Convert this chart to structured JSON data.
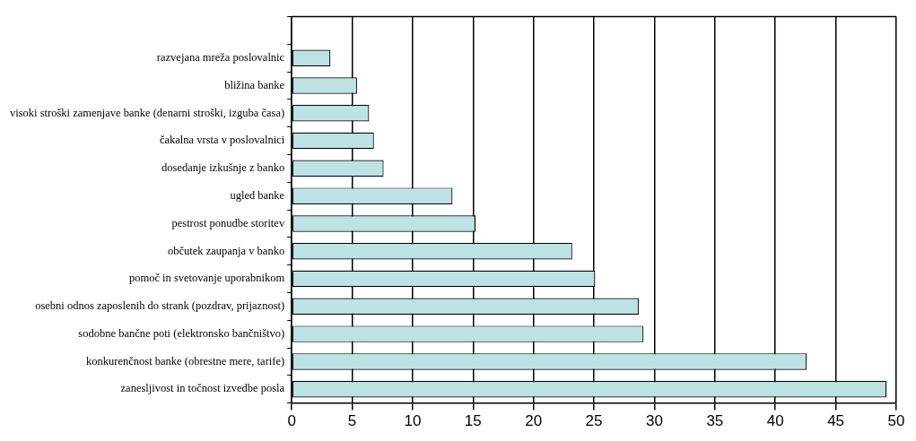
{
  "chart_data": {
    "type": "bar",
    "orientation": "horizontal",
    "categories": [
      null,
      "razvejana mreža poslovalnic",
      "bližina banke",
      "visoki stroški zamenjave banke (denarni stroški, izguba časa)",
      "čakalna vrsta v poslovalnici",
      "dosedanje izkušnje z banko",
      "ugled banke",
      "pestrost ponudbe storitev",
      "občutek zaupanja v banko",
      "pomoč in svetovanje uporabnikom",
      "osebni odnos zaposlenih do strank (pozdrav, prijaznost)",
      "sodobne bančne poti (elektronsko bančništvo)",
      "konkurenčnost banke (obrestne mere, tarife)",
      "zanesljivost in točnost izvedbe posla"
    ],
    "values": [
      null,
      3.2,
      5.4,
      6.4,
      6.8,
      7.6,
      13.3,
      15.2,
      23.2,
      25.1,
      28.7,
      29.1,
      42.6,
      49.2
    ],
    "color": "#bde2e4",
    "xlim": [
      0,
      50
    ],
    "xticks": [
      0,
      5,
      10,
      15,
      20,
      25,
      30,
      35,
      40,
      45,
      50
    ],
    "grid": "x",
    "legend": false
  }
}
